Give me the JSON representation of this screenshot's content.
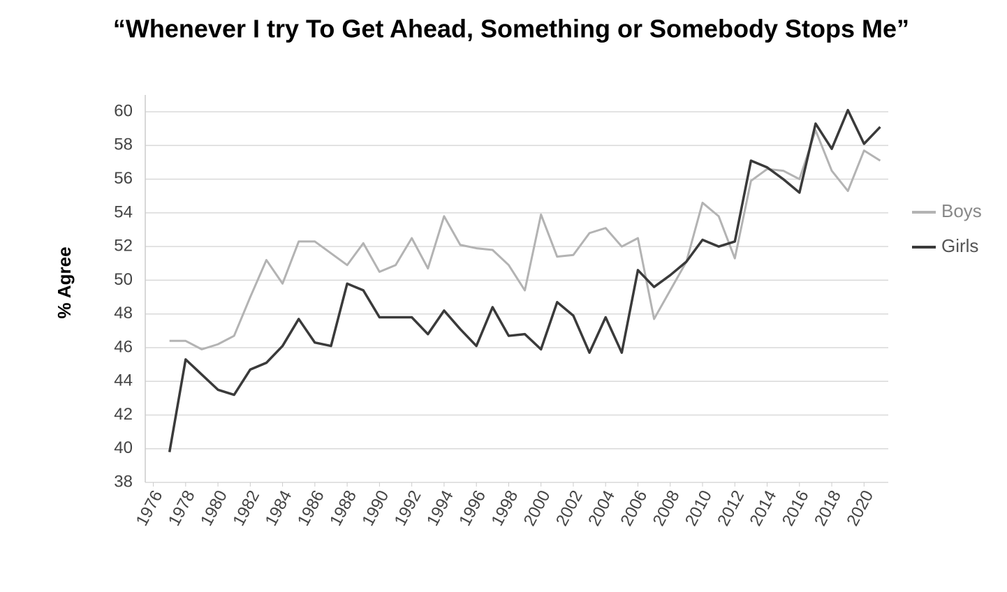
{
  "chart_data": {
    "type": "line",
    "title": "“Whenever I try To Get Ahead, Something or Somebody Stops Me”",
    "y_label": "% Agree",
    "x": [
      1977,
      1978,
      1979,
      1980,
      1981,
      1982,
      1983,
      1984,
      1985,
      1986,
      1987,
      1988,
      1989,
      1990,
      1991,
      1992,
      1993,
      1994,
      1995,
      1996,
      1997,
      1998,
      1999,
      2000,
      2001,
      2002,
      2003,
      2004,
      2005,
      2006,
      2007,
      2008,
      2009,
      2010,
      2011,
      2012,
      2013,
      2014,
      2015,
      2016,
      2017,
      2018,
      2019,
      2020,
      2021
    ],
    "series": [
      {
        "name": "Boys",
        "color": "#b3b3b3",
        "values": [
          46.4,
          46.4,
          45.9,
          46.2,
          46.7,
          49.0,
          51.2,
          49.8,
          52.3,
          52.3,
          51.6,
          50.9,
          52.2,
          50.5,
          50.9,
          52.5,
          50.7,
          53.8,
          52.1,
          51.9,
          51.8,
          50.9,
          49.4,
          53.9,
          51.4,
          51.5,
          52.8,
          53.1,
          52.0,
          52.5,
          47.7,
          49.4,
          51.1,
          54.6,
          53.8,
          51.3,
          55.9,
          56.6,
          56.5,
          56.0,
          58.9,
          56.5,
          55.3,
          57.7,
          57.1
        ]
      },
      {
        "name": "Girls",
        "color": "#3a3a3a",
        "values": [
          39.8,
          45.3,
          44.4,
          43.5,
          43.2,
          44.7,
          45.1,
          46.1,
          47.7,
          46.3,
          46.1,
          49.8,
          49.4,
          47.8,
          47.8,
          47.8,
          46.8,
          48.2,
          47.1,
          46.1,
          48.4,
          46.7,
          46.8,
          45.9,
          48.7,
          47.9,
          45.7,
          47.8,
          45.7,
          50.6,
          49.6,
          50.3,
          51.1,
          52.4,
          52.0,
          52.3,
          57.1,
          56.7,
          56.0,
          55.2,
          59.3,
          57.8,
          60.1,
          58.1,
          59.1
        ]
      }
    ],
    "xlim": [
      1975.5,
      2021.5
    ],
    "xticks": [
      1976,
      1978,
      1980,
      1982,
      1984,
      1986,
      1988,
      1990,
      1992,
      1994,
      1996,
      1998,
      2000,
      2002,
      2004,
      2006,
      2008,
      2010,
      2012,
      2014,
      2016,
      2018,
      2020
    ],
    "ylim": [
      38,
      61
    ],
    "yticks": [
      38,
      40,
      42,
      44,
      46,
      48,
      50,
      52,
      54,
      56,
      58,
      60
    ],
    "grid": true,
    "legend": "right"
  }
}
